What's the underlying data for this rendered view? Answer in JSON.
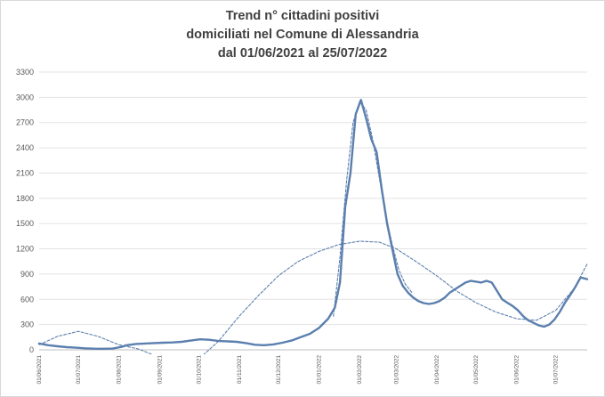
{
  "chart_data": {
    "type": "line",
    "title_lines": [
      "Trend n° cittadini positivi",
      "domiciliati nel Comune di Alessandria",
      "dal 01/06/2021 al 25/07/2022"
    ],
    "xlabel": "",
    "ylabel": "",
    "x_start": "2021-06-01",
    "x_end": "2022-07-25",
    "ylim": [
      0,
      3300
    ],
    "y_ticks": [
      "0",
      "300",
      "600",
      "900",
      "1200",
      "1500",
      "1800",
      "2100",
      "2400",
      "2700",
      "3000",
      "3300"
    ],
    "x_ticks": [
      {
        "date": "2021-06-01",
        "label": "01/06/2021"
      },
      {
        "date": "2021-07-01",
        "label": "01/07/2021"
      },
      {
        "date": "2021-08-01",
        "label": "01/08/2021"
      },
      {
        "date": "2021-09-01",
        "label": "01/09/2021"
      },
      {
        "date": "2021-10-01",
        "label": "01/10/2021"
      },
      {
        "date": "2021-11-01",
        "label": "01/11/2021"
      },
      {
        "date": "2021-12-01",
        "label": "01/12/2021"
      },
      {
        "date": "2022-01-01",
        "label": "01/01/2022"
      },
      {
        "date": "2022-02-01",
        "label": "01/02/2022"
      },
      {
        "date": "2022-03-01",
        "label": "01/03/2022"
      },
      {
        "date": "2022-04-01",
        "label": "01/04/2022"
      },
      {
        "date": "2022-05-01",
        "label": "01/05/2022"
      },
      {
        "date": "2022-06-01",
        "label": "01/06/2022"
      },
      {
        "date": "2022-07-01",
        "label": "01/07/2022"
      }
    ],
    "grid": true,
    "legend": "none",
    "series": [
      {
        "style": "solid",
        "color": "#5b7fae",
        "points": [
          [
            "2021-06-01",
            75
          ],
          [
            "2021-06-08",
            55
          ],
          [
            "2021-06-15",
            42
          ],
          [
            "2021-06-22",
            32
          ],
          [
            "2021-06-29",
            25
          ],
          [
            "2021-07-06",
            18
          ],
          [
            "2021-07-13",
            14
          ],
          [
            "2021-07-20",
            13
          ],
          [
            "2021-07-27",
            15
          ],
          [
            "2021-08-03",
            35
          ],
          [
            "2021-08-07",
            55
          ],
          [
            "2021-08-14",
            70
          ],
          [
            "2021-08-21",
            75
          ],
          [
            "2021-08-28",
            80
          ],
          [
            "2021-09-04",
            85
          ],
          [
            "2021-09-11",
            88
          ],
          [
            "2021-09-18",
            95
          ],
          [
            "2021-09-25",
            110
          ],
          [
            "2021-10-02",
            125
          ],
          [
            "2021-10-09",
            120
          ],
          [
            "2021-10-16",
            105
          ],
          [
            "2021-10-23",
            100
          ],
          [
            "2021-10-30",
            95
          ],
          [
            "2021-11-06",
            80
          ],
          [
            "2021-11-13",
            60
          ],
          [
            "2021-11-20",
            55
          ],
          [
            "2021-11-27",
            65
          ],
          [
            "2021-12-04",
            85
          ],
          [
            "2021-12-11",
            110
          ],
          [
            "2021-12-18",
            150
          ],
          [
            "2021-12-25",
            190
          ],
          [
            "2022-01-01",
            260
          ],
          [
            "2022-01-08",
            370
          ],
          [
            "2022-01-13",
            500
          ],
          [
            "2022-01-17",
            800
          ],
          [
            "2022-01-21",
            1700
          ],
          [
            "2022-01-25",
            2100
          ],
          [
            "2022-01-29",
            2800
          ],
          [
            "2022-02-02",
            2970
          ],
          [
            "2022-02-06",
            2750
          ],
          [
            "2022-02-10",
            2500
          ],
          [
            "2022-02-14",
            2350
          ],
          [
            "2022-02-18",
            1900
          ],
          [
            "2022-02-22",
            1500
          ],
          [
            "2022-02-26",
            1200
          ],
          [
            "2022-03-02",
            900
          ],
          [
            "2022-03-06",
            760
          ],
          [
            "2022-03-10",
            680
          ],
          [
            "2022-03-14",
            620
          ],
          [
            "2022-03-18",
            580
          ],
          [
            "2022-03-22",
            555
          ],
          [
            "2022-03-26",
            545
          ],
          [
            "2022-03-30",
            555
          ],
          [
            "2022-04-03",
            580
          ],
          [
            "2022-04-07",
            620
          ],
          [
            "2022-04-11",
            680
          ],
          [
            "2022-04-15",
            720
          ],
          [
            "2022-04-19",
            760
          ],
          [
            "2022-04-23",
            800
          ],
          [
            "2022-04-27",
            820
          ],
          [
            "2022-05-01",
            810
          ],
          [
            "2022-05-05",
            800
          ],
          [
            "2022-05-09",
            820
          ],
          [
            "2022-05-13",
            800
          ],
          [
            "2022-05-17",
            700
          ],
          [
            "2022-05-21",
            600
          ],
          [
            "2022-05-25",
            560
          ],
          [
            "2022-05-29",
            520
          ],
          [
            "2022-06-02",
            470
          ],
          [
            "2022-06-06",
            400
          ],
          [
            "2022-06-10",
            350
          ],
          [
            "2022-06-14",
            320
          ],
          [
            "2022-06-18",
            290
          ],
          [
            "2022-06-22",
            275
          ],
          [
            "2022-06-26",
            300
          ],
          [
            "2022-06-30",
            360
          ],
          [
            "2022-07-04",
            450
          ],
          [
            "2022-07-08",
            560
          ],
          [
            "2022-07-12",
            650
          ],
          [
            "2022-07-16",
            750
          ],
          [
            "2022-07-20",
            860
          ],
          [
            "2022-07-25",
            840
          ]
        ]
      },
      {
        "style": "dashed",
        "color": "#5b7fae",
        "points": [
          [
            "2021-06-01",
            60
          ],
          [
            "2021-06-15",
            160
          ],
          [
            "2021-07-01",
            220
          ],
          [
            "2021-07-16",
            160
          ],
          [
            "2021-08-01",
            60
          ],
          [
            "2021-08-16",
            10
          ],
          [
            "2021-09-01",
            -90
          ],
          [
            "2021-09-16",
            -150
          ],
          [
            "2021-10-01",
            -110
          ],
          [
            "2021-10-16",
            100
          ],
          [
            "2021-11-01",
            400
          ],
          [
            "2021-11-16",
            650
          ],
          [
            "2021-12-01",
            880
          ],
          [
            "2021-12-16",
            1050
          ],
          [
            "2022-01-01",
            1170
          ],
          [
            "2022-01-16",
            1250
          ],
          [
            "2022-02-01",
            1290
          ],
          [
            "2022-02-16",
            1280
          ],
          [
            "2022-03-01",
            1200
          ],
          [
            "2022-03-16",
            1050
          ],
          [
            "2022-04-01",
            880
          ],
          [
            "2022-04-16",
            700
          ],
          [
            "2022-05-01",
            560
          ],
          [
            "2022-05-16",
            450
          ],
          [
            "2022-06-01",
            370
          ],
          [
            "2022-06-16",
            350
          ],
          [
            "2022-07-01",
            470
          ],
          [
            "2022-07-15",
            730
          ],
          [
            "2022-07-25",
            1020
          ]
        ]
      },
      {
        "style": "dashed",
        "color": "#5b7fae",
        "points": [
          [
            "2022-01-12",
            400
          ],
          [
            "2022-01-17",
            1100
          ],
          [
            "2022-01-22",
            2000
          ],
          [
            "2022-01-27",
            2700
          ],
          [
            "2022-02-01",
            2950
          ],
          [
            "2022-02-06",
            2850
          ],
          [
            "2022-02-11",
            2500
          ],
          [
            "2022-02-16",
            2050
          ],
          [
            "2022-02-21",
            1600
          ],
          [
            "2022-02-26",
            1250
          ],
          [
            "2022-03-03",
            950
          ],
          [
            "2022-03-08",
            780
          ],
          [
            "2022-03-13",
            680
          ]
        ]
      }
    ]
  }
}
